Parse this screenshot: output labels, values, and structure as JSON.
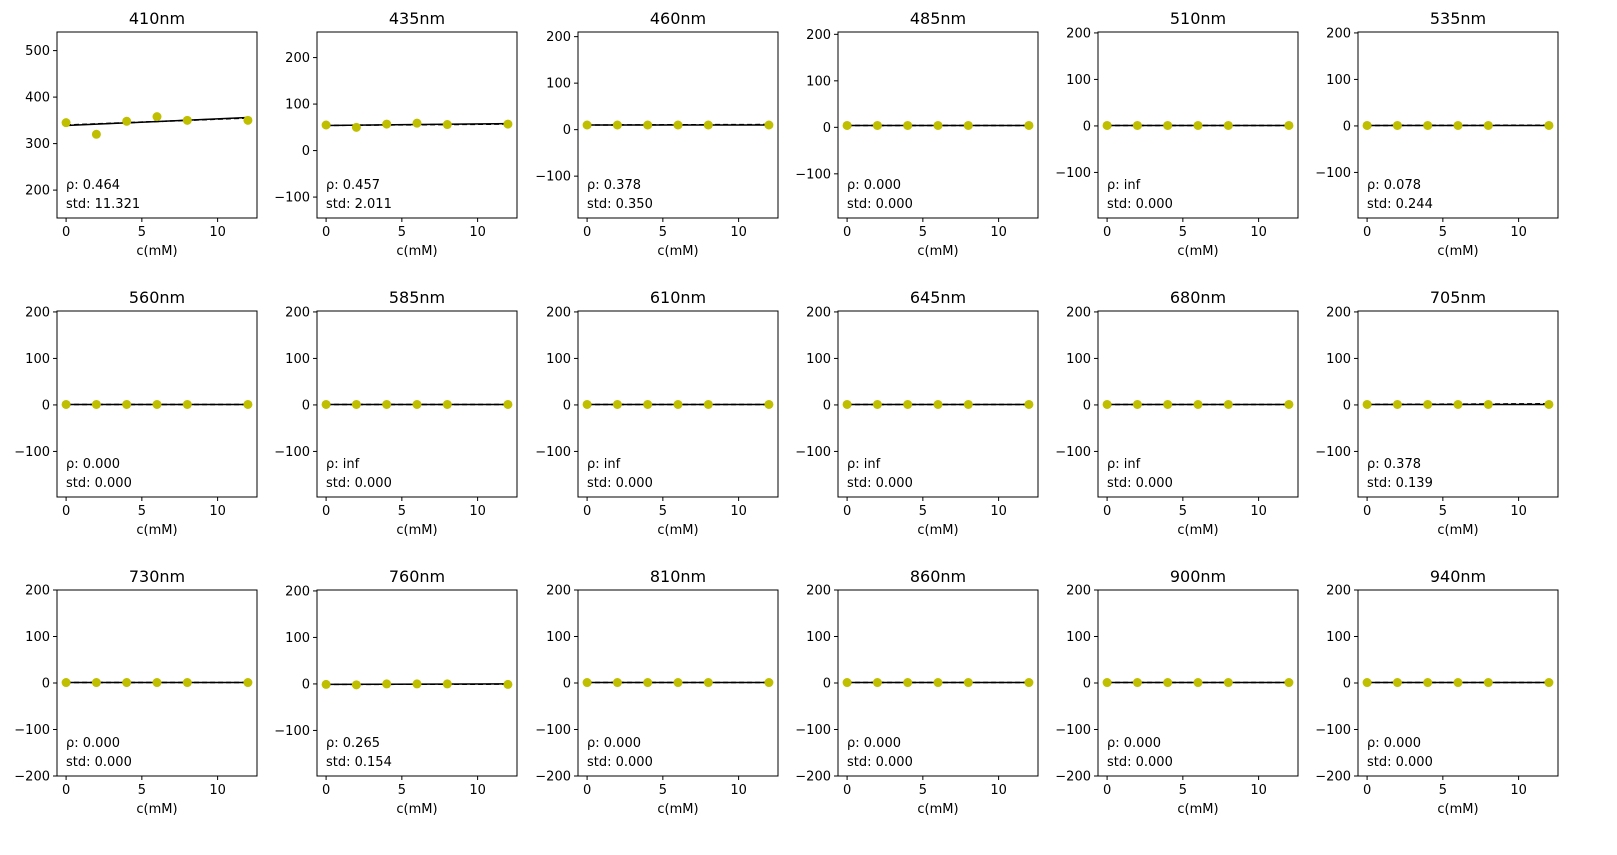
{
  "colors": {
    "points": "#bfbf00",
    "fit_line": "#000000",
    "ref_line": "#000000"
  },
  "chart_data": [
    {
      "type": "scatter",
      "title": "410nm",
      "xlabel": "c(mM)",
      "ylabel": "",
      "xlim": [
        -0.6,
        12.6
      ],
      "ylim": [
        140,
        540
      ],
      "xticks": [
        0,
        5,
        10
      ],
      "yticks": [
        200,
        300,
        400,
        500
      ],
      "ytick_labels": [
        "200",
        "300",
        "400",
        "500"
      ],
      "x": [
        0,
        2,
        4,
        6,
        8,
        12
      ],
      "y": [
        345,
        320,
        348,
        358,
        350,
        350
      ],
      "fit_line": {
        "x": [
          0,
          12
        ],
        "y": [
          339,
          356
        ]
      },
      "ref_line": {
        "x": [
          0,
          12
        ],
        "y": [
          340,
          355
        ]
      },
      "annotation": [
        "ρ: 0.464",
        "std: 11.321"
      ]
    },
    {
      "type": "scatter",
      "title": "435nm",
      "xlabel": "c(mM)",
      "ylabel": "",
      "xlim": [
        -0.6,
        12.6
      ],
      "ylim": [
        -145,
        255
      ],
      "xticks": [
        0,
        5,
        10
      ],
      "yticks": [
        -100,
        0,
        100,
        200
      ],
      "ytick_labels": [
        "−100",
        "0",
        "100",
        "200"
      ],
      "x": [
        0,
        2,
        4,
        6,
        8,
        12
      ],
      "y": [
        55,
        50,
        57,
        59,
        56,
        57
      ],
      "fit_line": {
        "x": [
          0,
          12
        ],
        "y": [
          54,
          58
        ]
      },
      "ref_line": {
        "x": [
          0,
          12
        ],
        "y": [
          54,
          57
        ]
      },
      "annotation": [
        "ρ: 0.457",
        "std: 2.011"
      ]
    },
    {
      "type": "scatter",
      "title": "460nm",
      "xlabel": "c(mM)",
      "ylabel": "",
      "xlim": [
        -0.6,
        12.6
      ],
      "ylim": [
        -190,
        210
      ],
      "xticks": [
        0,
        5,
        10
      ],
      "yticks": [
        -100,
        0,
        100,
        200
      ],
      "ytick_labels": [
        "−100",
        "0",
        "100",
        "200"
      ],
      "x": [
        0,
        2,
        4,
        6,
        8,
        12
      ],
      "y": [
        10,
        10,
        10,
        10,
        10,
        10
      ],
      "fit_line": {
        "x": [
          0,
          12
        ],
        "y": [
          10,
          10
        ]
      },
      "ref_line": {
        "x": [
          0,
          12
        ],
        "y": [
          10,
          11
        ]
      },
      "annotation": [
        "ρ: 0.378",
        "std: 0.350"
      ]
    },
    {
      "type": "scatter",
      "title": "485nm",
      "xlabel": "c(mM)",
      "ylabel": "",
      "xlim": [
        -0.6,
        12.6
      ],
      "ylim": [
        -195,
        205
      ],
      "xticks": [
        0,
        5,
        10
      ],
      "yticks": [
        -100,
        0,
        100,
        200
      ],
      "ytick_labels": [
        "−100",
        "0",
        "100",
        "200"
      ],
      "x": [
        0,
        2,
        4,
        6,
        8,
        12
      ],
      "y": [
        4,
        4,
        4,
        4,
        4,
        4
      ],
      "fit_line": {
        "x": [
          0,
          12
        ],
        "y": [
          4,
          4
        ]
      },
      "ref_line": {
        "x": [
          0,
          12
        ],
        "y": [
          4,
          4
        ]
      },
      "annotation": [
        "ρ: 0.000",
        "std: 0.000"
      ]
    },
    {
      "type": "scatter",
      "title": "510nm",
      "xlabel": "c(mM)",
      "ylabel": "",
      "xlim": [
        -0.6,
        12.6
      ],
      "ylim": [
        -198,
        202
      ],
      "xticks": [
        0,
        5,
        10
      ],
      "yticks": [
        -100,
        0,
        100,
        200
      ],
      "ytick_labels": [
        "−100",
        "0",
        "100",
        "200"
      ],
      "x": [
        0,
        2,
        4,
        6,
        8,
        12
      ],
      "y": [
        1,
        1,
        1,
        1,
        1,
        1
      ],
      "fit_line": {
        "x": [
          0,
          12
        ],
        "y": [
          1,
          1
        ]
      },
      "ref_line": {
        "x": [
          0,
          12
        ],
        "y": [
          1,
          1
        ]
      },
      "annotation": [
        "ρ: inf",
        "std: 0.000"
      ]
    },
    {
      "type": "scatter",
      "title": "535nm",
      "xlabel": "c(mM)",
      "ylabel": "",
      "xlim": [
        -0.6,
        12.6
      ],
      "ylim": [
        -198,
        202
      ],
      "xticks": [
        0,
        5,
        10
      ],
      "yticks": [
        -100,
        0,
        100,
        200
      ],
      "ytick_labels": [
        "−100",
        "0",
        "100",
        "200"
      ],
      "x": [
        0,
        2,
        4,
        6,
        8,
        12
      ],
      "y": [
        1,
        1,
        1,
        1,
        1,
        1
      ],
      "fit_line": {
        "x": [
          0,
          12
        ],
        "y": [
          1,
          1
        ]
      },
      "ref_line": {
        "x": [
          0,
          12
        ],
        "y": [
          1,
          1.5
        ]
      },
      "annotation": [
        "ρ: 0.078",
        "std: 0.244"
      ]
    },
    {
      "type": "scatter",
      "title": "560nm",
      "xlabel": "c(mM)",
      "ylabel": "",
      "xlim": [
        -0.6,
        12.6
      ],
      "ylim": [
        -198,
        202
      ],
      "xticks": [
        0,
        5,
        10
      ],
      "yticks": [
        -100,
        0,
        100,
        200
      ],
      "ytick_labels": [
        "−100",
        "0",
        "100",
        "200"
      ],
      "x": [
        0,
        2,
        4,
        6,
        8,
        12
      ],
      "y": [
        1,
        1,
        1,
        1,
        1,
        1
      ],
      "fit_line": {
        "x": [
          0,
          12
        ],
        "y": [
          1,
          1
        ]
      },
      "ref_line": {
        "x": [
          0,
          12
        ],
        "y": [
          1,
          1
        ]
      },
      "annotation": [
        "ρ: 0.000",
        "std: 0.000"
      ]
    },
    {
      "type": "scatter",
      "title": "585nm",
      "xlabel": "c(mM)",
      "ylabel": "",
      "xlim": [
        -0.6,
        12.6
      ],
      "ylim": [
        -198,
        202
      ],
      "xticks": [
        0,
        5,
        10
      ],
      "yticks": [
        -100,
        0,
        100,
        200
      ],
      "ytick_labels": [
        "−100",
        "0",
        "100",
        "200"
      ],
      "x": [
        0,
        2,
        4,
        6,
        8,
        12
      ],
      "y": [
        1,
        1,
        1,
        1,
        1,
        1
      ],
      "fit_line": {
        "x": [
          0,
          12
        ],
        "y": [
          1,
          1
        ]
      },
      "ref_line": {
        "x": [
          0,
          12
        ],
        "y": [
          1,
          1
        ]
      },
      "annotation": [
        "ρ: inf",
        "std: 0.000"
      ]
    },
    {
      "type": "scatter",
      "title": "610nm",
      "xlabel": "c(mM)",
      "ylabel": "",
      "xlim": [
        -0.6,
        12.6
      ],
      "ylim": [
        -198,
        202
      ],
      "xticks": [
        0,
        5,
        10
      ],
      "yticks": [
        -100,
        0,
        100,
        200
      ],
      "ytick_labels": [
        "−100",
        "0",
        "100",
        "200"
      ],
      "x": [
        0,
        2,
        4,
        6,
        8,
        12
      ],
      "y": [
        1,
        1,
        1,
        1,
        1,
        1
      ],
      "fit_line": {
        "x": [
          0,
          12
        ],
        "y": [
          1,
          1
        ]
      },
      "ref_line": {
        "x": [
          0,
          12
        ],
        "y": [
          1,
          1
        ]
      },
      "annotation": [
        "ρ: inf",
        "std: 0.000"
      ]
    },
    {
      "type": "scatter",
      "title": "645nm",
      "xlabel": "c(mM)",
      "ylabel": "",
      "xlim": [
        -0.6,
        12.6
      ],
      "ylim": [
        -198,
        202
      ],
      "xticks": [
        0,
        5,
        10
      ],
      "yticks": [
        -100,
        0,
        100,
        200
      ],
      "ytick_labels": [
        "−100",
        "0",
        "100",
        "200"
      ],
      "x": [
        0,
        2,
        4,
        6,
        8,
        12
      ],
      "y": [
        1,
        1,
        1,
        1,
        1,
        1
      ],
      "fit_line": {
        "x": [
          0,
          12
        ],
        "y": [
          1,
          1
        ]
      },
      "ref_line": {
        "x": [
          0,
          12
        ],
        "y": [
          1,
          1
        ]
      },
      "annotation": [
        "ρ: inf",
        "std: 0.000"
      ]
    },
    {
      "type": "scatter",
      "title": "680nm",
      "xlabel": "c(mM)",
      "ylabel": "",
      "xlim": [
        -0.6,
        12.6
      ],
      "ylim": [
        -198,
        202
      ],
      "xticks": [
        0,
        5,
        10
      ],
      "yticks": [
        -100,
        0,
        100,
        200
      ],
      "ytick_labels": [
        "−100",
        "0",
        "100",
        "200"
      ],
      "x": [
        0,
        2,
        4,
        6,
        8,
        12
      ],
      "y": [
        1,
        1,
        1,
        1,
        1,
        1
      ],
      "fit_line": {
        "x": [
          0,
          12
        ],
        "y": [
          1,
          1
        ]
      },
      "ref_line": {
        "x": [
          0,
          12
        ],
        "y": [
          1,
          1
        ]
      },
      "annotation": [
        "ρ: inf",
        "std: 0.000"
      ]
    },
    {
      "type": "scatter",
      "title": "705nm",
      "xlabel": "c(mM)",
      "ylabel": "",
      "xlim": [
        -0.6,
        12.6
      ],
      "ylim": [
        -198,
        202
      ],
      "xticks": [
        0,
        5,
        10
      ],
      "yticks": [
        -100,
        0,
        100,
        200
      ],
      "ytick_labels": [
        "−100",
        "0",
        "100",
        "200"
      ],
      "x": [
        0,
        2,
        4,
        6,
        8,
        12
      ],
      "y": [
        1,
        1,
        1,
        1,
        1,
        1
      ],
      "fit_line": {
        "x": [
          0,
          12
        ],
        "y": [
          1,
          1
        ]
      },
      "ref_line": {
        "x": [
          0,
          12
        ],
        "y": [
          1,
          2.5
        ]
      },
      "annotation": [
        "ρ: 0.378",
        "std: 0.139"
      ]
    },
    {
      "type": "scatter",
      "title": "730nm",
      "xlabel": "c(mM)",
      "ylabel": "",
      "xlim": [
        -0.6,
        12.6
      ],
      "ylim": [
        -200,
        200
      ],
      "xticks": [
        0,
        5,
        10
      ],
      "yticks": [
        -200,
        -100,
        0,
        100,
        200
      ],
      "ytick_labels": [
        "−200",
        "−100",
        "0",
        "100",
        "200"
      ],
      "x": [
        0,
        2,
        4,
        6,
        8,
        12
      ],
      "y": [
        1,
        1,
        1,
        1,
        1,
        1
      ],
      "fit_line": {
        "x": [
          0,
          12
        ],
        "y": [
          1,
          1
        ]
      },
      "ref_line": {
        "x": [
          0,
          12
        ],
        "y": [
          1,
          1
        ]
      },
      "annotation": [
        "ρ: 0.000",
        "std: 0.000"
      ]
    },
    {
      "type": "scatter",
      "title": "760nm",
      "xlabel": "c(mM)",
      "ylabel": "",
      "xlim": [
        -0.6,
        12.6
      ],
      "ylim": [
        -198,
        202
      ],
      "xticks": [
        0,
        5,
        10
      ],
      "yticks": [
        -100,
        0,
        100,
        200
      ],
      "ytick_labels": [
        "−100",
        "0",
        "100",
        "200"
      ],
      "x": [
        0,
        2,
        4,
        6,
        8,
        12
      ],
      "y": [
        -1,
        -2,
        0,
        0,
        0,
        -1
      ],
      "fit_line": {
        "x": [
          0,
          12
        ],
        "y": [
          -1,
          0
        ]
      },
      "ref_line": {
        "x": [
          0,
          12
        ],
        "y": [
          -1,
          -0.5
        ]
      },
      "annotation": [
        "ρ: 0.265",
        "std: 0.154"
      ]
    },
    {
      "type": "scatter",
      "title": "810nm",
      "xlabel": "c(mM)",
      "ylabel": "",
      "xlim": [
        -0.6,
        12.6
      ],
      "ylim": [
        -200,
        200
      ],
      "xticks": [
        0,
        5,
        10
      ],
      "yticks": [
        -200,
        -100,
        0,
        100,
        200
      ],
      "ytick_labels": [
        "−200",
        "−100",
        "0",
        "100",
        "200"
      ],
      "x": [
        0,
        2,
        4,
        6,
        8,
        12
      ],
      "y": [
        1,
        1,
        1,
        1,
        1,
        1
      ],
      "fit_line": {
        "x": [
          0,
          12
        ],
        "y": [
          1,
          1
        ]
      },
      "ref_line": {
        "x": [
          0,
          12
        ],
        "y": [
          1,
          1
        ]
      },
      "annotation": [
        "ρ: 0.000",
        "std: 0.000"
      ]
    },
    {
      "type": "scatter",
      "title": "860nm",
      "xlabel": "c(mM)",
      "ylabel": "",
      "xlim": [
        -0.6,
        12.6
      ],
      "ylim": [
        -200,
        200
      ],
      "xticks": [
        0,
        5,
        10
      ],
      "yticks": [
        -200,
        -100,
        0,
        100,
        200
      ],
      "ytick_labels": [
        "−200",
        "−100",
        "0",
        "100",
        "200"
      ],
      "x": [
        0,
        2,
        4,
        6,
        8,
        12
      ],
      "y": [
        1,
        1,
        1,
        1,
        1,
        1
      ],
      "fit_line": {
        "x": [
          0,
          12
        ],
        "y": [
          1,
          1
        ]
      },
      "ref_line": {
        "x": [
          0,
          12
        ],
        "y": [
          1,
          1
        ]
      },
      "annotation": [
        "ρ: 0.000",
        "std: 0.000"
      ]
    },
    {
      "type": "scatter",
      "title": "900nm",
      "xlabel": "c(mM)",
      "ylabel": "",
      "xlim": [
        -0.6,
        12.6
      ],
      "ylim": [
        -200,
        200
      ],
      "xticks": [
        0,
        5,
        10
      ],
      "yticks": [
        -200,
        -100,
        0,
        100,
        200
      ],
      "ytick_labels": [
        "−200",
        "−100",
        "0",
        "100",
        "200"
      ],
      "x": [
        0,
        2,
        4,
        6,
        8,
        12
      ],
      "y": [
        1,
        1,
        1,
        1,
        1,
        1
      ],
      "fit_line": {
        "x": [
          0,
          12
        ],
        "y": [
          1,
          1
        ]
      },
      "ref_line": {
        "x": [
          0,
          12
        ],
        "y": [
          1,
          1
        ]
      },
      "annotation": [
        "ρ: 0.000",
        "std: 0.000"
      ]
    },
    {
      "type": "scatter",
      "title": "940nm",
      "xlabel": "c(mM)",
      "ylabel": "",
      "xlim": [
        -0.6,
        12.6
      ],
      "ylim": [
        -200,
        200
      ],
      "xticks": [
        0,
        5,
        10
      ],
      "yticks": [
        -200,
        -100,
        0,
        100,
        200
      ],
      "ytick_labels": [
        "−200",
        "−100",
        "0",
        "100",
        "200"
      ],
      "x": [
        0,
        2,
        4,
        6,
        8,
        12
      ],
      "y": [
        1,
        1,
        1,
        1,
        1,
        1
      ],
      "fit_line": {
        "x": [
          0,
          12
        ],
        "y": [
          1,
          1
        ]
      },
      "ref_line": {
        "x": [
          0,
          12
        ],
        "y": [
          1,
          1
        ]
      },
      "annotation": [
        "ρ: 0.000",
        "std: 0.000"
      ]
    }
  ]
}
